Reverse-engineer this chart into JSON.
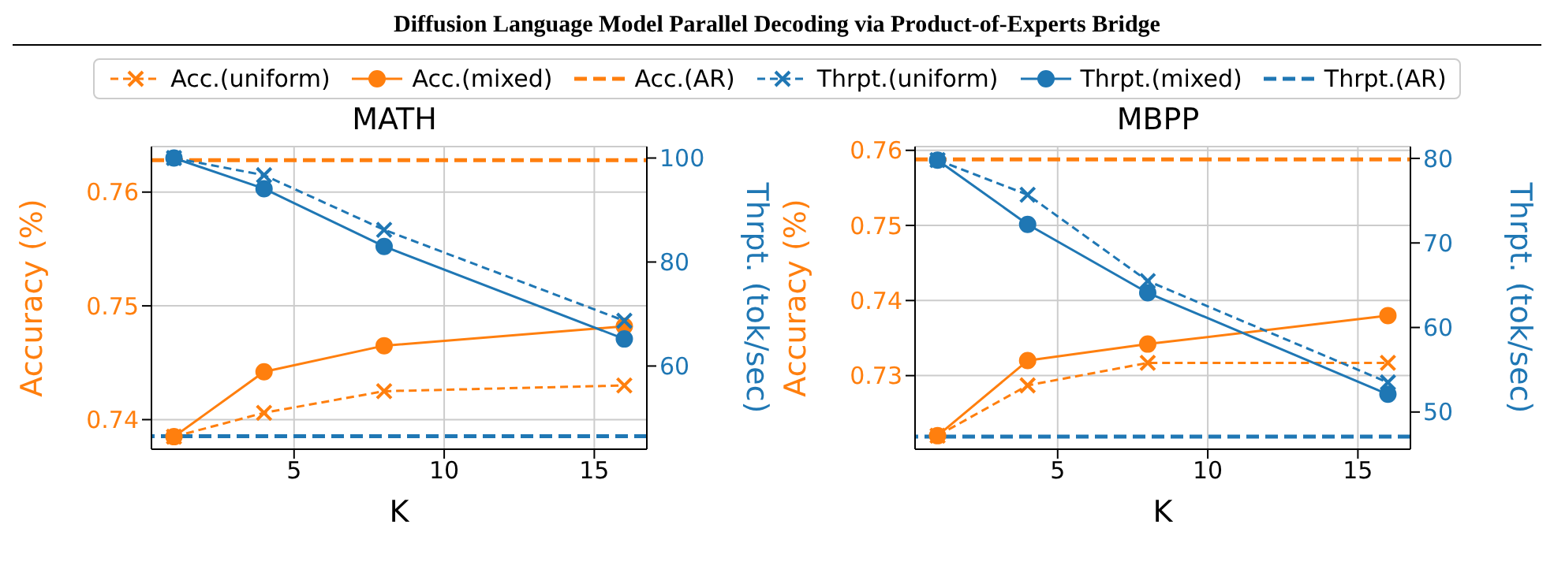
{
  "chart_data": [
    {
      "type": "line",
      "title": "MATH",
      "annotations": [
        "Diffusion Language Model Parallel Decoding via Product-of-Experts Bridge"
      ],
      "xlabel": "K",
      "ylabel": "Accuracy (%)",
      "y2label": "Thrpt. (tok/sec)",
      "x": [
        1,
        4,
        8,
        16
      ],
      "xlim": [
        0.25,
        16.75
      ],
      "xticks": [
        5,
        10,
        15
      ],
      "ylim": [
        0.7374,
        0.764
      ],
      "yticks": [
        0.74,
        0.75,
        0.76
      ],
      "y2lim": [
        44,
        102.2
      ],
      "y2ticks": [
        60,
        80,
        100
      ],
      "grid": true,
      "legend": "top",
      "series": [
        {
          "name": "Acc.(uniform)",
          "color": "#ff7f0e",
          "marker": "cross",
          "line_style": "dashed",
          "values": [
            0.7385,
            0.7406,
            0.7425,
            0.743
          ]
        },
        {
          "name": "Acc.(mixed)",
          "color": "#ff7f0e",
          "marker": "circle",
          "line_style": "solid",
          "values": [
            0.7385,
            0.7442,
            0.7465,
            0.7482
          ]
        },
        {
          "name": "Thrpt.(uniform)",
          "color": "#1f77b4",
          "marker": "cross",
          "line_style": "dashed",
          "axis": "y2",
          "values": [
            100,
            96.7,
            86.2,
            68.7
          ]
        },
        {
          "name": "Thrpt.(mixed)",
          "color": "#1f77b4",
          "marker": "circle",
          "line_style": "solid",
          "axis": "y2",
          "values": [
            100,
            94.1,
            83,
            65.2
          ]
        }
      ],
      "ref_lines": [
        {
          "axis": "y",
          "value": 0.7628,
          "label": "Acc.(AR)",
          "color": "#ff7f0e",
          "line_style": "dashed"
        },
        {
          "axis": "y2",
          "value": 46.5,
          "label": "Thrpt.(AR)",
          "color": "#1f77b4",
          "line_style": "dashed"
        }
      ]
    },
    {
      "type": "line",
      "title": "MBPP",
      "xlabel": "K",
      "ylabel": "Accuracy (%)",
      "y2label": "Thrpt. (tok/sec)",
      "x": [
        1,
        4,
        8,
        16
      ],
      "xlim": [
        0.25,
        16.75
      ],
      "xticks": [
        5,
        10,
        15
      ],
      "ylim": [
        0.7202,
        0.7605
      ],
      "yticks": [
        0.73,
        0.74,
        0.75,
        0.76
      ],
      "y2lim": [
        45.6,
        81.4
      ],
      "y2ticks": [
        50,
        60,
        70,
        80
      ],
      "grid": true,
      "series": [
        {
          "color": "#ff7f0e",
          "marker": "cross",
          "line_style": "dashed",
          "values": [
            0.722,
            0.7287,
            0.7317,
            0.7317
          ]
        },
        {
          "color": "#ff7f0e",
          "marker": "circle",
          "line_style": "solid",
          "values": [
            0.722,
            0.732,
            0.7342,
            0.738
          ]
        },
        {
          "color": "#1f77b4",
          "marker": "cross",
          "line_style": "dashed",
          "axis": "y2",
          "values": [
            79.8,
            75.7,
            65.5,
            53.5
          ]
        },
        {
          "color": "#1f77b4",
          "marker": "circle",
          "line_style": "solid",
          "axis": "y2",
          "values": [
            79.8,
            72.2,
            64.1,
            52.1
          ]
        }
      ],
      "ref_lines": [
        {
          "axis": "y",
          "value": 0.7588,
          "color": "#ff7f0e",
          "line_style": "dashed"
        },
        {
          "axis": "y2",
          "value": 47.1,
          "color": "#1f77b4",
          "line_style": "dashed"
        }
      ]
    }
  ]
}
